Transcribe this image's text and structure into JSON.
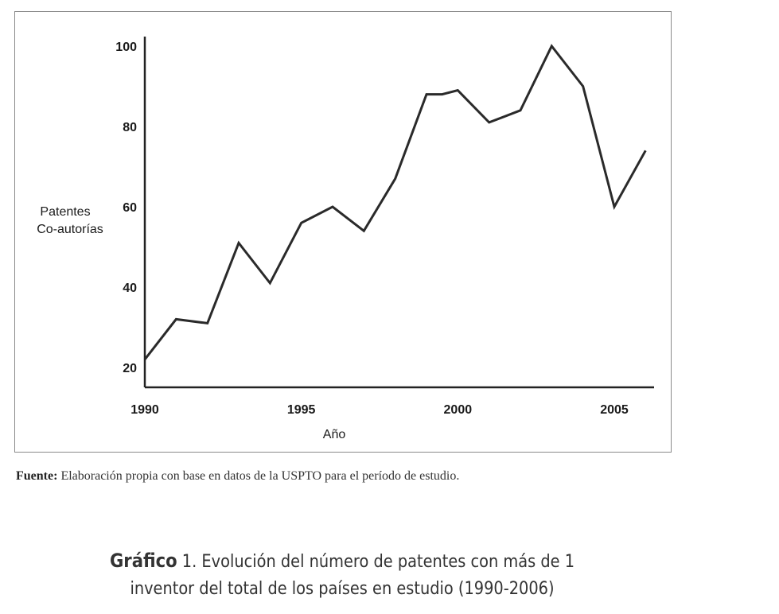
{
  "chart_data": {
    "type": "line",
    "x": [
      1990,
      1991,
      1992,
      1993,
      1994,
      1995,
      1996,
      1997,
      1998,
      1999,
      1999.5,
      2000,
      2001,
      2002,
      2003,
      2004,
      2005,
      2006
    ],
    "series": [
      {
        "values": [
          22,
          32,
          31,
          51,
          41,
          56,
          60,
          54,
          67,
          88,
          88,
          89,
          81,
          84,
          100,
          90,
          60,
          74
        ]
      }
    ],
    "xticks": [
      "1990",
      "1995",
      "2000",
      "2005"
    ],
    "yticks": [
      "20",
      "40",
      "60",
      "80",
      "100"
    ],
    "xlabel": "Año",
    "ylabel_line1": "Patentes",
    "ylabel_line2": "Co-autorías",
    "xlim": [
      1990,
      2006.5
    ],
    "ylim": [
      18,
      102
    ],
    "grid": false
  },
  "source": {
    "label": "Fuente:",
    "text": " Elaboración propia con base en datos de la USPTO para el período de estudio."
  },
  "caption": {
    "label": "Gráfico",
    "number": " 1.",
    "line1": " Evolución del número de patentes con más de 1",
    "line2": "inventor del total de los países en estudio (1990-2006)"
  }
}
